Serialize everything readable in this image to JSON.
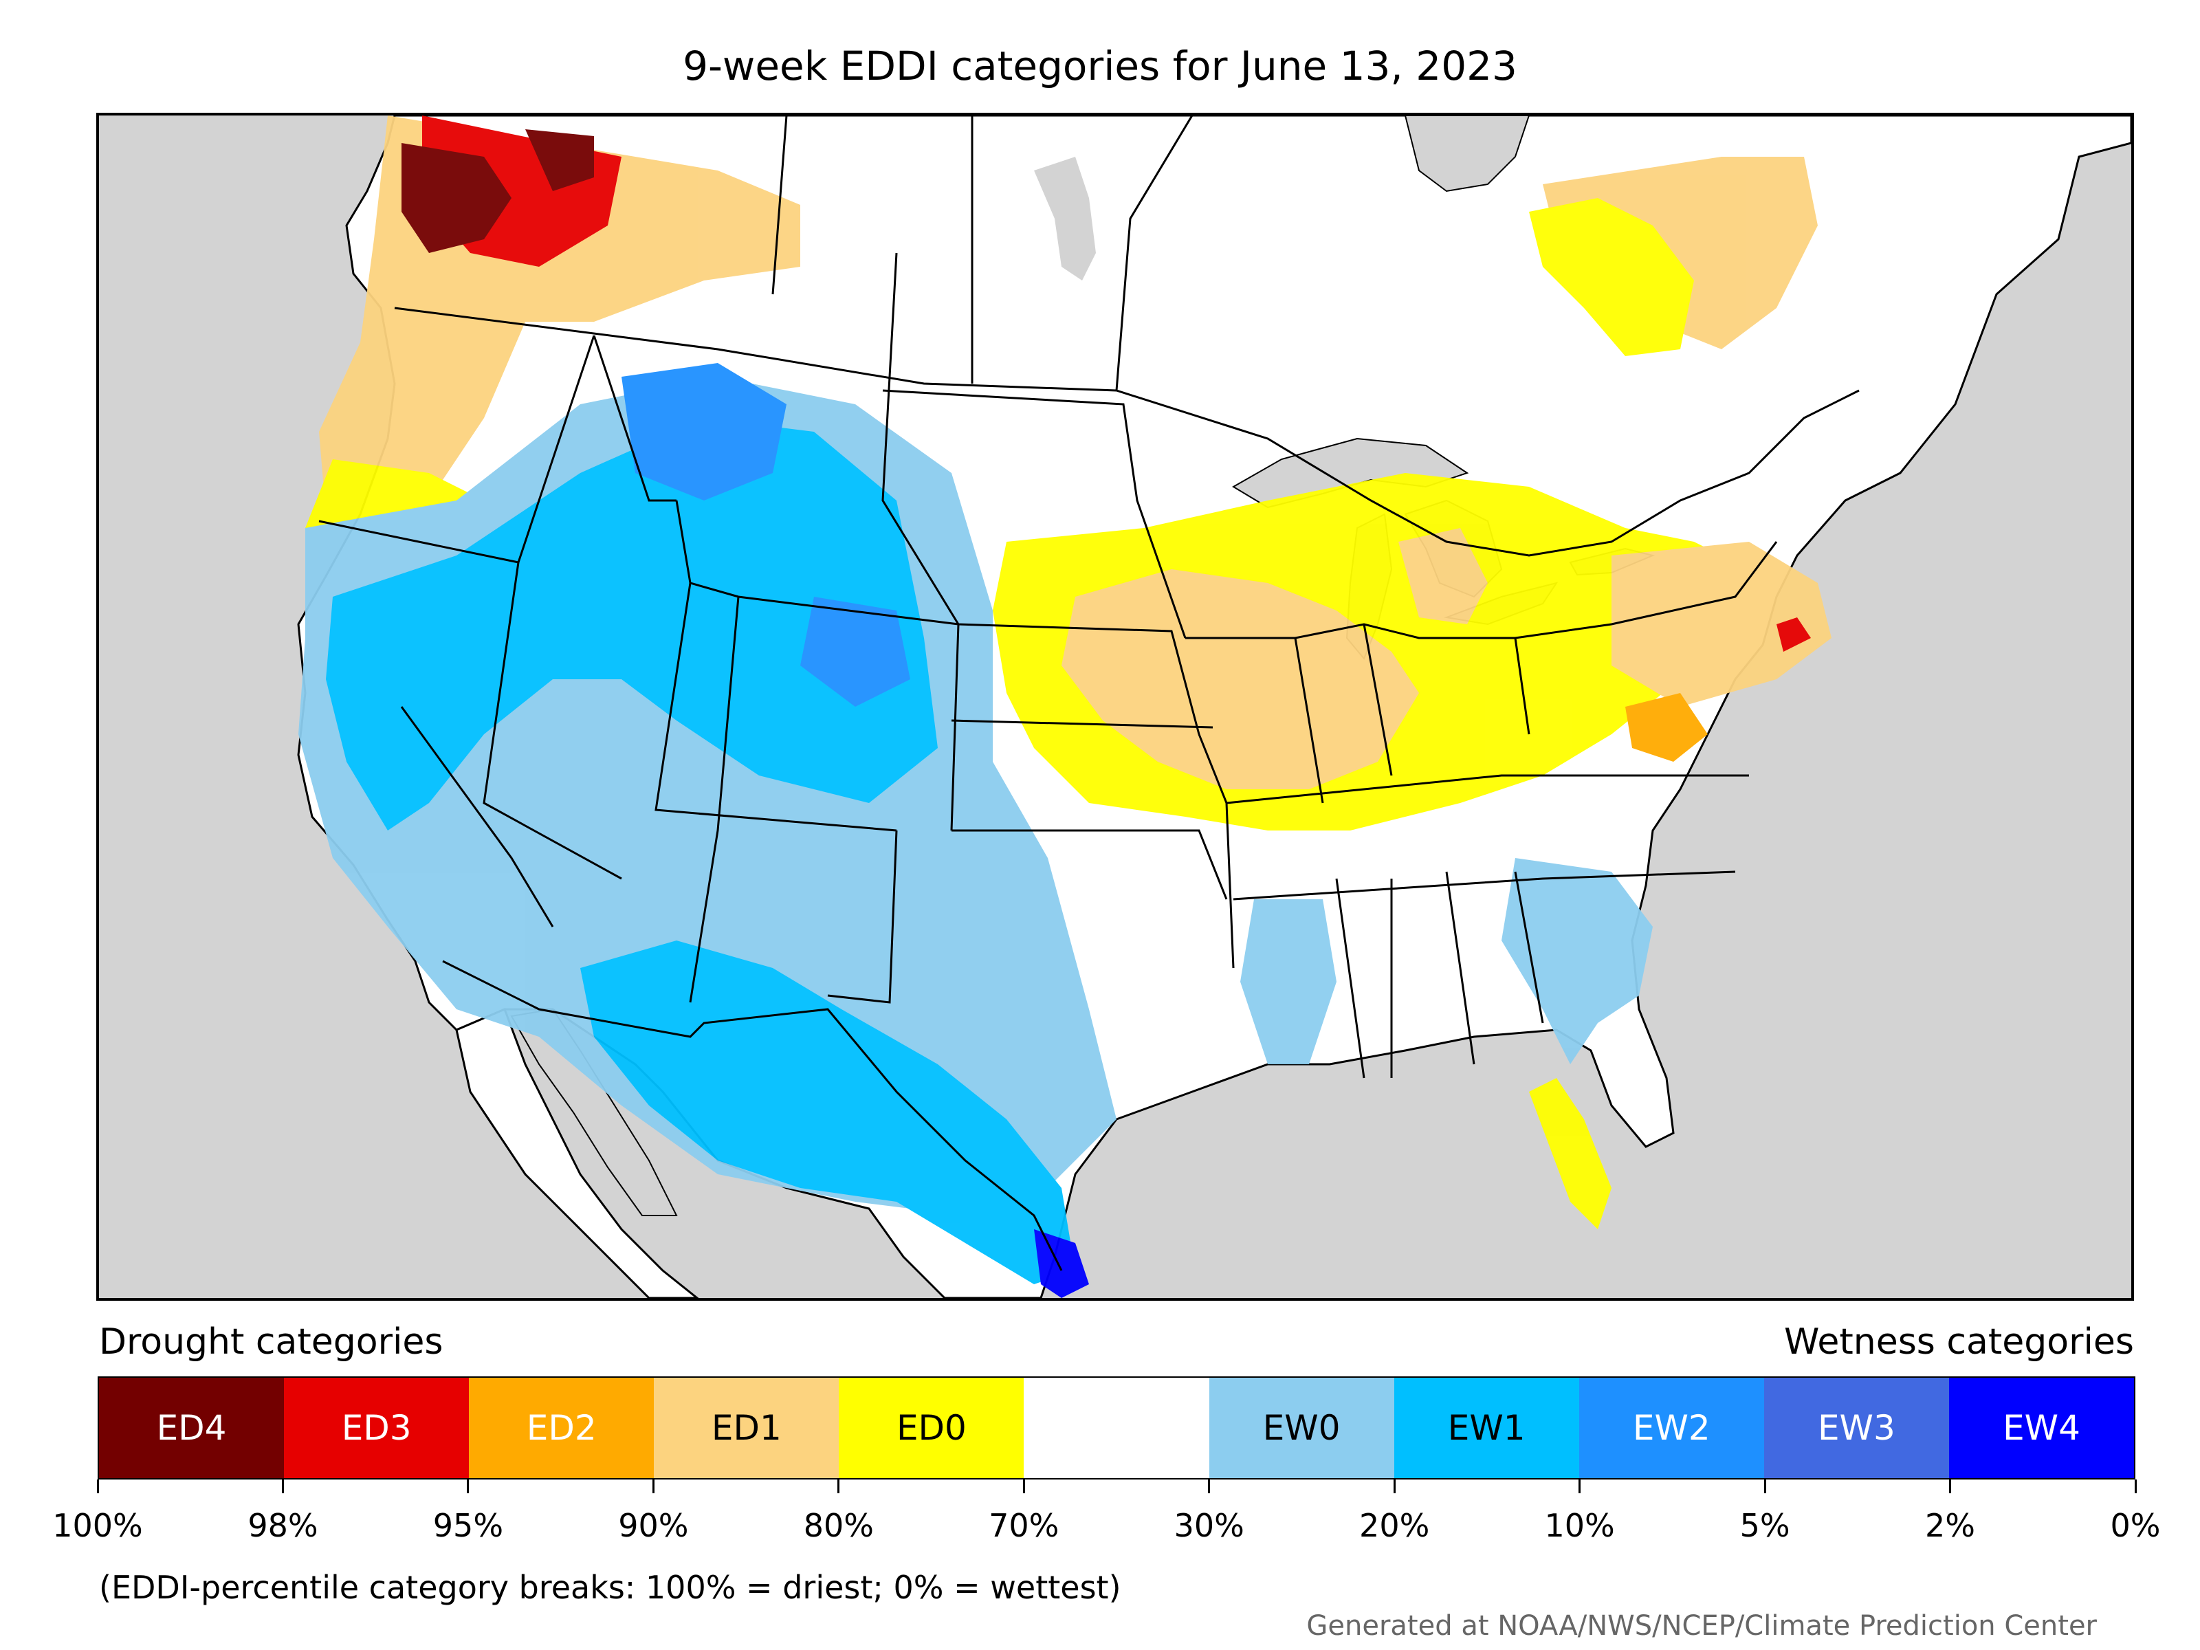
{
  "title": "9-week EDDI categories for June 13, 2023",
  "legend": {
    "drought_heading": "Drought categories",
    "wetness_heading": "Wetness categories",
    "categories": [
      {
        "label": "ED4",
        "color": "#730000",
        "text_color": "#ffffff"
      },
      {
        "label": "ED3",
        "color": "#e60000",
        "text_color": "#ffffff"
      },
      {
        "label": "ED2",
        "color": "#ffaa00",
        "text_color": "#ffffff"
      },
      {
        "label": "ED1",
        "color": "#fcd37f",
        "text_color": "#000000"
      },
      {
        "label": "ED0",
        "color": "#ffff00",
        "text_color": "#000000"
      },
      {
        "label": "",
        "color": "#ffffff",
        "text_color": "#000000"
      },
      {
        "label": "EW0",
        "color": "#8ccdef",
        "text_color": "#000000"
      },
      {
        "label": "EW1",
        "color": "#00bfff",
        "text_color": "#000000"
      },
      {
        "label": "EW2",
        "color": "#1e90ff",
        "text_color": "#ffffff"
      },
      {
        "label": "EW3",
        "color": "#4169e1",
        "text_color": "#ffffff"
      },
      {
        "label": "EW4",
        "color": "#0000ff",
        "text_color": "#ffffff"
      }
    ],
    "breaks": [
      "100%",
      "98%",
      "95%",
      "90%",
      "80%",
      "70%",
      "30%",
      "20%",
      "10%",
      "5%",
      "2%",
      "0%"
    ]
  },
  "note": "(EDDI-percentile category breaks: 100% = driest; 0% = wettest)",
  "credit": "Generated at NOAA/NWS/NCEP/Climate Prediction Center",
  "map_colors": {
    "ocean": "#d3d3d3",
    "land": "#ffffff",
    "border": "#000000"
  }
}
